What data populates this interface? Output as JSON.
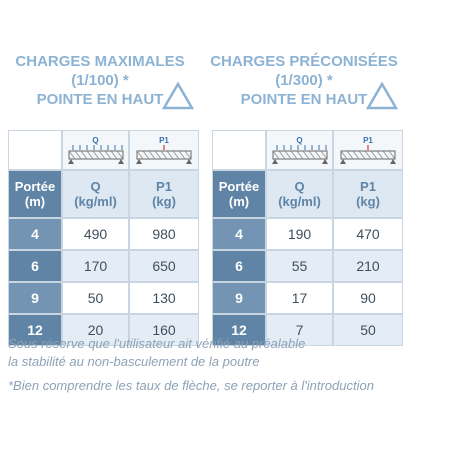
{
  "tables": [
    {
      "title": [
        "CHARGES MAXIMALES",
        "(1/100) *",
        "POINTE EN HAUT"
      ],
      "icons": [
        "Q",
        "P1"
      ],
      "header": [
        [
          "Portée",
          "(m)"
        ],
        [
          "Q",
          "(kg/ml)"
        ],
        [
          "P1",
          "(kg)"
        ]
      ],
      "rows": [
        [
          4,
          490,
          980
        ],
        [
          6,
          170,
          650
        ],
        [
          9,
          50,
          130
        ],
        [
          12,
          20,
          160
        ]
      ]
    },
    {
      "title": [
        "CHARGES PRÉCONISÉES",
        "(1/300) *",
        "POINTE EN HAUT"
      ],
      "icons": [
        "Q",
        "P1"
      ],
      "header": [
        [
          "Portée",
          "(m)"
        ],
        [
          "Q",
          "(kg/ml)"
        ],
        [
          "P1",
          "(kg)"
        ]
      ],
      "rows": [
        [
          4,
          190,
          470
        ],
        [
          6,
          55,
          210
        ],
        [
          9,
          17,
          90
        ],
        [
          12,
          7,
          50
        ]
      ]
    }
  ],
  "notes": [
    "Sous réserve que l'utilisateur ait vérifié au préalable",
    "la stabilité au non-basculement de la poutre",
    "*Bien comprendre les taux de flèche, se reporter à l'introduction"
  ]
}
